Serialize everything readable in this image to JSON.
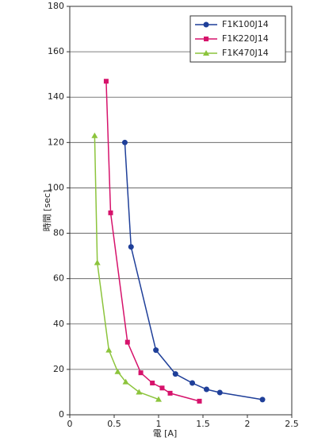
{
  "chart_data": {
    "type": "line",
    "x_label": "電 [A]",
    "y_label": "時間 [sec]",
    "xlim": [
      0,
      2.5
    ],
    "xticks": [
      0,
      0.5,
      1,
      1.5,
      2,
      2.5
    ],
    "ylim": [
      0,
      180
    ],
    "yticks": [
      0,
      20,
      40,
      60,
      80,
      100,
      120,
      140,
      160,
      180
    ],
    "grid": true,
    "legend": "upper right",
    "series": [
      {
        "name": "F1K100J14",
        "color": "#1f3f99",
        "marker": "circle",
        "x": [
          0.62,
          0.69,
          0.97,
          1.19,
          1.38,
          1.54,
          1.69,
          2.17
        ],
        "values": [
          120,
          74,
          28.5,
          18,
          14,
          11.2,
          9.8,
          6.7
        ]
      },
      {
        "name": "F1K220J14",
        "color": "#d6126b",
        "marker": "square",
        "x": [
          0.41,
          0.46,
          0.65,
          0.8,
          0.93,
          1.04,
          1.13,
          1.46
        ],
        "values": [
          147,
          89,
          32,
          18.5,
          14,
          11.8,
          9.5,
          6
        ]
      },
      {
        "name": "F1K470J14",
        "color": "#8cc43c",
        "marker": "triangle",
        "x": [
          0.28,
          0.31,
          0.44,
          0.54,
          0.63,
          0.78,
          1.0
        ],
        "values": [
          123,
          67,
          28.5,
          19,
          14.5,
          10,
          6.8
        ]
      }
    ]
  }
}
